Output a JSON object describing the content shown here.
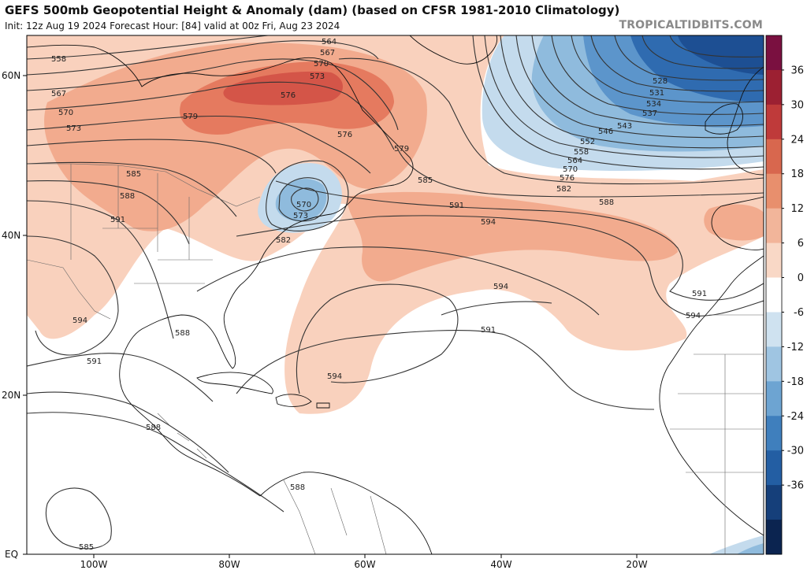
{
  "header": {
    "title": "GEFS 500mb Geopotential Height & Anomaly (dam) (based on CFSR 1981-2010 Climatology)",
    "subtitle": "Init: 12z Aug 19 2024   Forecast Hour: [84]   valid at 00z Fri, Aug 23 2024",
    "credit": "TROPICALTIDBITS.COM"
  },
  "map": {
    "lat_labels": [
      "60N",
      "40N",
      "20N",
      "EQ"
    ],
    "lon_labels": [
      "100W",
      "80W",
      "60W",
      "40W",
      "20W"
    ],
    "contour_labels": [
      {
        "text": "558"
      },
      {
        "text": "567"
      },
      {
        "text": "570"
      },
      {
        "text": "573"
      },
      {
        "text": "579"
      },
      {
        "text": "585"
      },
      {
        "text": "588"
      },
      {
        "text": "591"
      },
      {
        "text": "594"
      },
      {
        "text": "588"
      },
      {
        "text": "591"
      },
      {
        "text": "588"
      },
      {
        "text": "564"
      },
      {
        "text": "567"
      },
      {
        "text": "570"
      },
      {
        "text": "573"
      },
      {
        "text": "576"
      },
      {
        "text": "576"
      },
      {
        "text": "579"
      },
      {
        "text": "570"
      },
      {
        "text": "573"
      },
      {
        "text": "582"
      },
      {
        "text": "585"
      },
      {
        "text": "591"
      },
      {
        "text": "594"
      },
      {
        "text": "594"
      },
      {
        "text": "591"
      },
      {
        "text": "594"
      },
      {
        "text": "588"
      },
      {
        "text": "528"
      },
      {
        "text": "531"
      },
      {
        "text": "534"
      },
      {
        "text": "537"
      },
      {
        "text": "543"
      },
      {
        "text": "546"
      },
      {
        "text": "552"
      },
      {
        "text": "558"
      },
      {
        "text": "564"
      },
      {
        "text": "570"
      },
      {
        "text": "576"
      },
      {
        "text": "582"
      },
      {
        "text": "588"
      },
      {
        "text": "591"
      },
      {
        "text": "594"
      },
      {
        "text": "585"
      }
    ]
  },
  "colorbar": {
    "labels": [
      "36",
      "30",
      "24",
      "18",
      "12",
      "6",
      "0",
      "-6",
      "-12",
      "-18",
      "-24",
      "-30",
      "-36"
    ],
    "colors": [
      "#7a1040",
      "#9c2032",
      "#bf3a3a",
      "#d8674e",
      "#e88f6d",
      "#f2b59a",
      "#f9d8c6",
      "#ffffff",
      "#cfe2f0",
      "#9fc5e2",
      "#6da4d2",
      "#3f7fbd",
      "#235ea3",
      "#153f7a",
      "#0b2450"
    ]
  },
  "palette": {
    "anom_pos1": "#f9d1bd",
    "anom_pos2": "#f2ab8e",
    "anom_pos3": "#e57a5f",
    "anom_pos4": "#d45548",
    "anom_neg1": "#c4dbed",
    "anom_neg2": "#8fbbdd",
    "anom_neg3": "#5c95cb",
    "anom_neg4": "#2f6bb0",
    "anom_neg5": "#1d4f93",
    "contour": "#333333",
    "coast": "#111111",
    "border": "#666666"
  }
}
